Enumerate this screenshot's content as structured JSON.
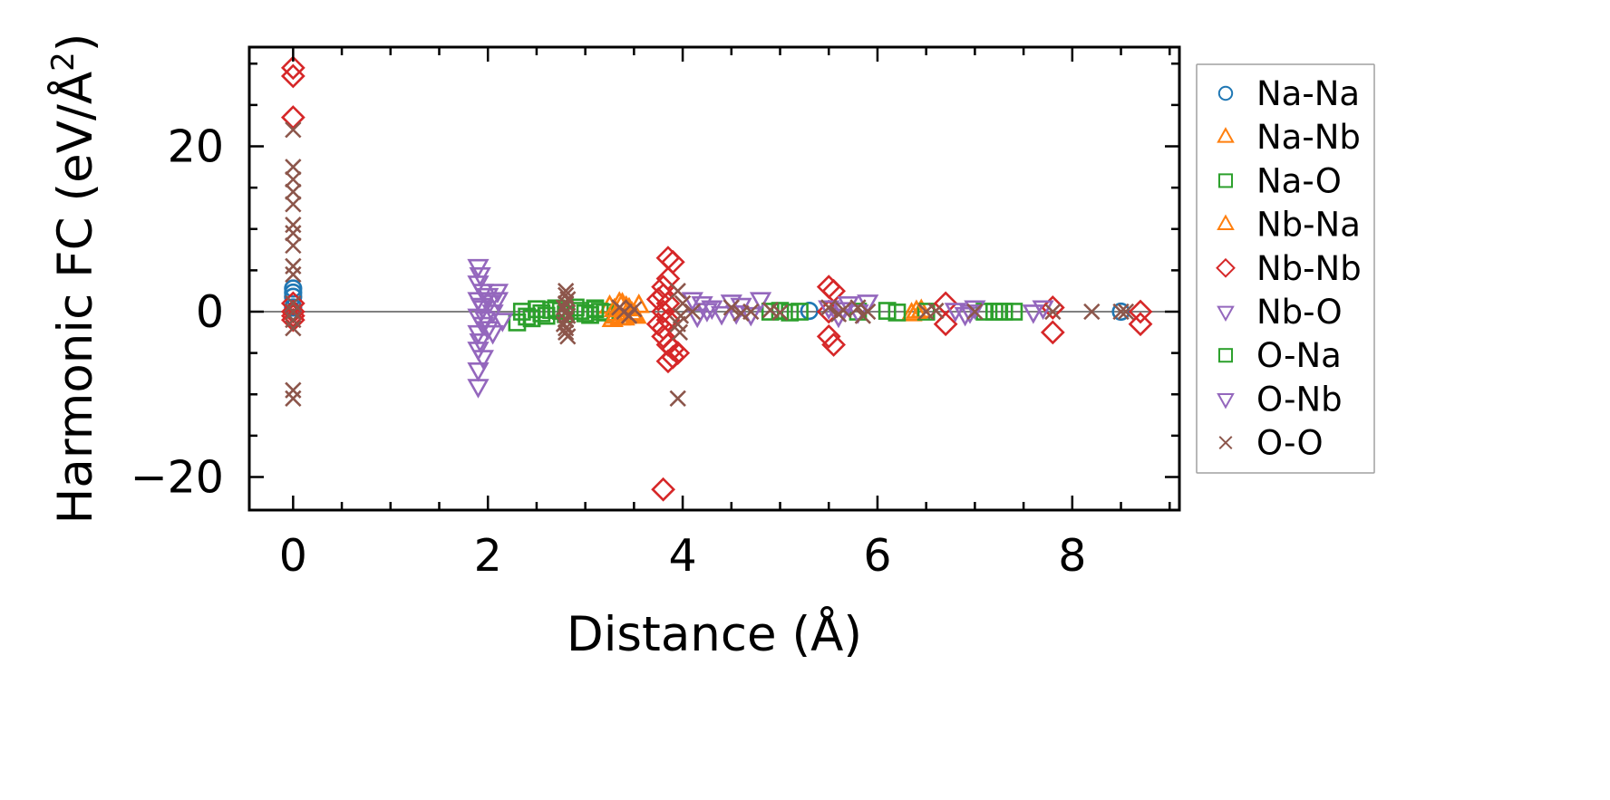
{
  "chart_data": {
    "type": "scatter",
    "xlabel": "Distance (Å)",
    "ylabel_main": "Harmonic FC (eV/Å",
    "ylabel_sup": "2",
    "ylabel_close": ")",
    "xlim": [
      -0.45,
      9.1
    ],
    "ylim": [
      -24,
      32
    ],
    "x_ticks": [
      0,
      2,
      4,
      6,
      8
    ],
    "y_ticks": [
      20,
      0,
      -20
    ],
    "x_tick_labels": [
      "0",
      "2",
      "4",
      "6",
      "8"
    ],
    "y_tick_labels": [
      "20",
      "0",
      "−20"
    ],
    "x_minor_step": 0.5,
    "y_minor_step": 5,
    "zero_line": true,
    "grid": false,
    "legend_position": "outside-right",
    "series": [
      {
        "name": "Na-Na",
        "marker": "circle",
        "color": "#1f77b4",
        "points": [
          [
            0,
            2.8
          ],
          [
            0,
            2.3
          ],
          [
            0,
            1.8
          ],
          [
            0,
            0.5
          ],
          [
            5.3,
            0.1
          ],
          [
            8.5,
            0.0
          ]
        ]
      },
      {
        "name": "Na-Nb",
        "marker": "triangle-up",
        "color": "#ff7f0e",
        "points": [
          [
            3.25,
            0.6
          ],
          [
            3.3,
            -0.6
          ],
          [
            3.35,
            1.0
          ],
          [
            3.4,
            -0.8
          ],
          [
            3.45,
            0.3
          ],
          [
            3.5,
            -0.4
          ],
          [
            3.55,
            0.7
          ],
          [
            3.28,
            -1.0
          ],
          [
            3.38,
            0.9
          ],
          [
            3.48,
            -0.2
          ],
          [
            6.35,
            -0.3
          ],
          [
            6.45,
            0.1
          ]
        ]
      },
      {
        "name": "Na-O",
        "marker": "square",
        "color": "#2ca02c",
        "points": [
          [
            2.3,
            -1.3
          ],
          [
            2.35,
            0.0
          ],
          [
            2.4,
            -0.6
          ],
          [
            2.5,
            0.3
          ],
          [
            2.6,
            -0.5
          ],
          [
            2.7,
            0.4
          ],
          [
            2.8,
            -0.3
          ],
          [
            2.9,
            0.5
          ],
          [
            3.0,
            -0.2
          ],
          [
            3.1,
            0.4
          ],
          [
            3.2,
            -0.1
          ],
          [
            2.45,
            -0.8
          ],
          [
            2.65,
            0.2
          ],
          [
            2.95,
            0.1
          ],
          [
            3.15,
            0.0
          ],
          [
            4.9,
            0.0
          ],
          [
            5.0,
            0.1
          ],
          [
            5.1,
            -0.1
          ],
          [
            5.8,
            0.0
          ],
          [
            6.1,
            0.1
          ],
          [
            6.2,
            -0.1
          ],
          [
            6.5,
            0.0
          ],
          [
            7.1,
            0.0
          ],
          [
            7.2,
            0.0
          ],
          [
            7.3,
            0.0
          ],
          [
            7.4,
            0.0
          ]
        ]
      },
      {
        "name": "Nb-Na",
        "marker": "triangle-up",
        "color": "#ff7f0e",
        "points": [
          [
            3.3,
            0.2
          ],
          [
            3.32,
            -0.3
          ],
          [
            3.42,
            0.5
          ],
          [
            3.52,
            -0.6
          ],
          [
            3.36,
            -0.8
          ],
          [
            6.4,
            0.0
          ]
        ]
      },
      {
        "name": "Nb-Nb",
        "marker": "diamond",
        "color": "#d62728",
        "points": [
          [
            0,
            29.5
          ],
          [
            0,
            28.5
          ],
          [
            0,
            23.5
          ],
          [
            0,
            1.0
          ],
          [
            0,
            0.0
          ],
          [
            0,
            -0.5
          ],
          [
            0,
            -1.0
          ],
          [
            3.8,
            -21.5
          ],
          [
            3.85,
            6.5
          ],
          [
            3.9,
            6.0
          ],
          [
            3.85,
            4.0
          ],
          [
            3.8,
            3.0
          ],
          [
            3.8,
            2.0
          ],
          [
            3.85,
            1.0
          ],
          [
            3.8,
            0.0
          ],
          [
            3.85,
            -1.0
          ],
          [
            3.8,
            -2.0
          ],
          [
            3.8,
            -3.0
          ],
          [
            3.85,
            -4.0
          ],
          [
            3.9,
            -4.5
          ],
          [
            3.95,
            -5.0
          ],
          [
            3.85,
            -6.0
          ],
          [
            3.9,
            -5.5
          ],
          [
            3.75,
            1.5
          ],
          [
            3.75,
            -1.5
          ],
          [
            5.5,
            3.0
          ],
          [
            5.55,
            2.5
          ],
          [
            5.5,
            -3.0
          ],
          [
            5.55,
            -4.0
          ],
          [
            5.5,
            0.0
          ],
          [
            6.7,
            1.0
          ],
          [
            6.7,
            -1.5
          ],
          [
            7.8,
            -2.5
          ],
          [
            7.8,
            0.5
          ],
          [
            8.7,
            0.0
          ],
          [
            8.7,
            -1.5
          ]
        ]
      },
      {
        "name": "Nb-O",
        "marker": "triangle-down",
        "color": "#9467bd",
        "points": [
          [
            1.9,
            5.5
          ],
          [
            1.92,
            4.5
          ],
          [
            1.9,
            3.5
          ],
          [
            1.95,
            2.5
          ],
          [
            1.9,
            1.5
          ],
          [
            1.95,
            0.5
          ],
          [
            1.9,
            -0.5
          ],
          [
            1.95,
            -1.5
          ],
          [
            1.9,
            -2.5
          ],
          [
            1.92,
            -3.5
          ],
          [
            1.9,
            -4.5
          ],
          [
            1.95,
            -5.5
          ],
          [
            1.9,
            -7.0
          ],
          [
            1.9,
            -9.0
          ],
          [
            2.0,
            2.0
          ],
          [
            2.05,
            0.0
          ],
          [
            2.0,
            -2.0
          ],
          [
            2.1,
            1.5
          ],
          [
            2.15,
            -1.0
          ],
          [
            2.1,
            2.5
          ],
          [
            2.05,
            -2.5
          ],
          [
            4.1,
            1.5
          ],
          [
            4.15,
            -0.5
          ],
          [
            4.2,
            1.0
          ],
          [
            4.3,
            0.5
          ],
          [
            4.4,
            -0.2
          ],
          [
            4.5,
            1.2
          ],
          [
            4.6,
            0.8
          ],
          [
            4.7,
            -0.3
          ],
          [
            4.8,
            1.5
          ],
          [
            5.5,
            0.5
          ],
          [
            5.6,
            -0.5
          ],
          [
            5.7,
            1.0
          ],
          [
            5.8,
            0.0
          ],
          [
            5.9,
            1.2
          ],
          [
            6.8,
            0.2
          ],
          [
            6.9,
            -0.3
          ],
          [
            7.0,
            0.5
          ],
          [
            7.6,
            0.0
          ],
          [
            7.7,
            0.5
          ]
        ]
      },
      {
        "name": "O-Na",
        "marker": "square",
        "color": "#2ca02c",
        "points": [
          [
            2.55,
            -0.2
          ],
          [
            2.75,
            0.1
          ],
          [
            3.05,
            -0.4
          ],
          [
            3.1,
            0.3
          ],
          [
            5.2,
            0.0
          ],
          [
            7.25,
            0.0
          ]
        ]
      },
      {
        "name": "O-Nb",
        "marker": "triangle-down",
        "color": "#9467bd",
        "points": [
          [
            1.93,
            0.8
          ],
          [
            1.97,
            -0.8
          ],
          [
            2.02,
            1.2
          ],
          [
            4.25,
            0.2
          ],
          [
            4.55,
            -0.1
          ],
          [
            5.65,
            0.3
          ],
          [
            6.95,
            0.0
          ]
        ]
      },
      {
        "name": "O-O",
        "marker": "x",
        "color": "#8c564b",
        "points": [
          [
            0,
            22
          ],
          [
            0,
            17.5
          ],
          [
            0,
            16
          ],
          [
            0,
            14.5
          ],
          [
            0,
            13
          ],
          [
            0,
            10.5
          ],
          [
            0,
            9.5
          ],
          [
            0,
            8
          ],
          [
            0,
            5.5
          ],
          [
            0,
            4.5
          ],
          [
            0,
            1.0
          ],
          [
            0,
            0.0
          ],
          [
            0,
            -1.0
          ],
          [
            0,
            -2.0
          ],
          [
            0,
            -9.5
          ],
          [
            0,
            -10.5
          ],
          [
            2.8,
            2.5
          ],
          [
            2.8,
            2.0
          ],
          [
            2.82,
            1.5
          ],
          [
            2.8,
            1.0
          ],
          [
            2.78,
            0.5
          ],
          [
            2.8,
            0.0
          ],
          [
            2.82,
            -0.5
          ],
          [
            2.8,
            -1.0
          ],
          [
            2.78,
            -1.5
          ],
          [
            2.8,
            -2.0
          ],
          [
            2.8,
            -2.5
          ],
          [
            2.82,
            -3.0
          ],
          [
            3.35,
            0.5
          ],
          [
            3.4,
            0.0
          ],
          [
            3.45,
            -0.5
          ],
          [
            3.5,
            0.3
          ],
          [
            3.95,
            -10.5
          ],
          [
            3.95,
            2.5
          ],
          [
            4.0,
            1.0
          ],
          [
            3.98,
            -0.5
          ],
          [
            3.95,
            -1.5
          ],
          [
            3.97,
            -2.5
          ],
          [
            4.1,
            0.0
          ],
          [
            4.5,
            0.5
          ],
          [
            4.6,
            -0.2
          ],
          [
            4.7,
            0.0
          ],
          [
            4.9,
            0.2
          ],
          [
            5.0,
            -0.1
          ],
          [
            5.5,
            0.5
          ],
          [
            5.6,
            -0.3
          ],
          [
            5.65,
            0.2
          ],
          [
            5.8,
            0.5
          ],
          [
            5.85,
            -0.5
          ],
          [
            5.9,
            0.0
          ],
          [
            6.5,
            0.0
          ],
          [
            6.6,
            0.1
          ],
          [
            7.0,
            0.0
          ],
          [
            7.8,
            0.0
          ],
          [
            8.2,
            0.0
          ],
          [
            8.5,
            0.0
          ],
          [
            8.55,
            0.0
          ]
        ]
      }
    ]
  }
}
